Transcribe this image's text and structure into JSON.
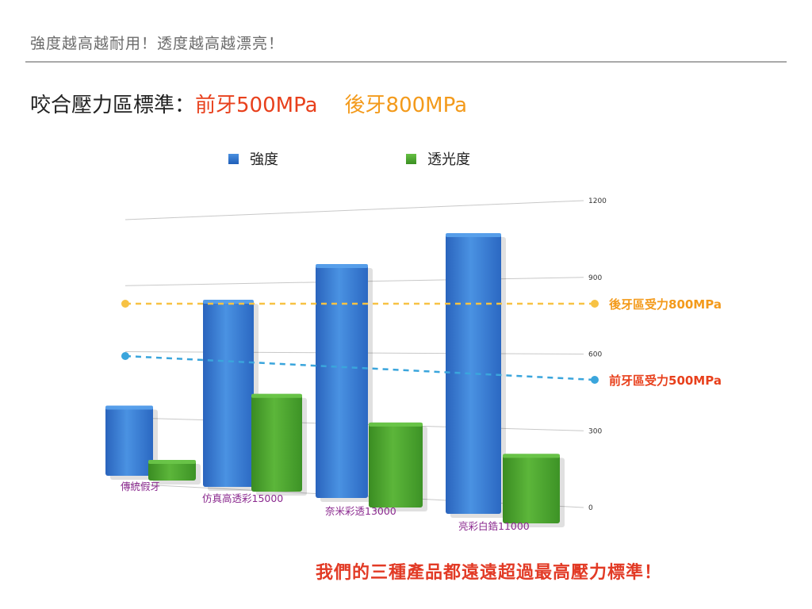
{
  "heading": "強度越高越耐用！透度越高越漂亮！",
  "standard": {
    "prefix": "咬合壓力區標準：",
    "front": "前牙500MPa",
    "back": "後牙800MPa"
  },
  "colors": {
    "strength": "#2f72c6",
    "translucency": "#4aa32e",
    "front_line": "#3aa5dc",
    "back_line": "#f7c244",
    "front_text": "#e8401c",
    "back_text": "#f39a1b"
  },
  "chart_data": {
    "type": "bar",
    "categories": [
      "傳統假牙",
      "仿真高透彩15000",
      "奈米彩透13000",
      "亮彩白鋯11000"
    ],
    "series": [
      {
        "name": "強度",
        "values": [
          300,
          800,
          1000,
          1200
        ]
      },
      {
        "name": "透光度",
        "values": [
          80,
          380,
          330,
          270
        ]
      }
    ],
    "y_ticks": [
      0,
      300,
      600,
      900,
      1200
    ],
    "ylim": [
      0,
      1200
    ],
    "reference_lines": [
      {
        "label": "後牙區受力800MPa",
        "value": 800
      },
      {
        "label": "前牙區受力500MPa",
        "value": 500
      }
    ],
    "legend": "top"
  },
  "conclusion": "我們的三種產品都遠遠超過最高壓力標準！"
}
